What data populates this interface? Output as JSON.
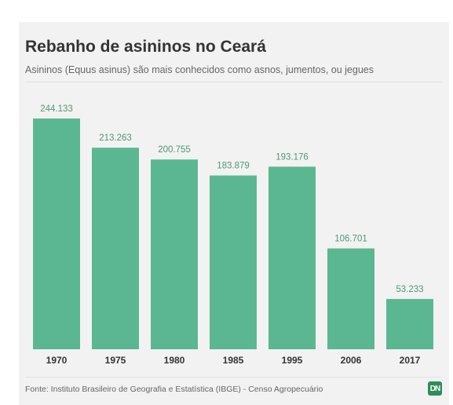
{
  "header": {
    "title": "Rebanho de asininos no Ceará",
    "subtitle": "Asininos (Equus asinus) são mais conhecidos como asnos, jumentos, ou jegues"
  },
  "footer": {
    "source": "Fonte: Instituto Brasileiro de Geografia e Estatística (IBGE) - Censo Agropecuário",
    "logo_text": "DN"
  },
  "colors": {
    "bar": "#5bb792",
    "label": "#4e9a74",
    "axis_text": "#333333"
  },
  "chart_data": {
    "type": "bar",
    "categories": [
      "1970",
      "1975",
      "1980",
      "1985",
      "1995",
      "2006",
      "2017"
    ],
    "values": [
      244133,
      213263,
      200755,
      183879,
      193176,
      106701,
      53233
    ],
    "value_labels": [
      "244.133",
      "213.263",
      "200.755",
      "183.879",
      "193.176",
      "106.701",
      "53.233"
    ],
    "ylim": [
      0,
      244133
    ],
    "grid": false,
    "legend": "none"
  }
}
